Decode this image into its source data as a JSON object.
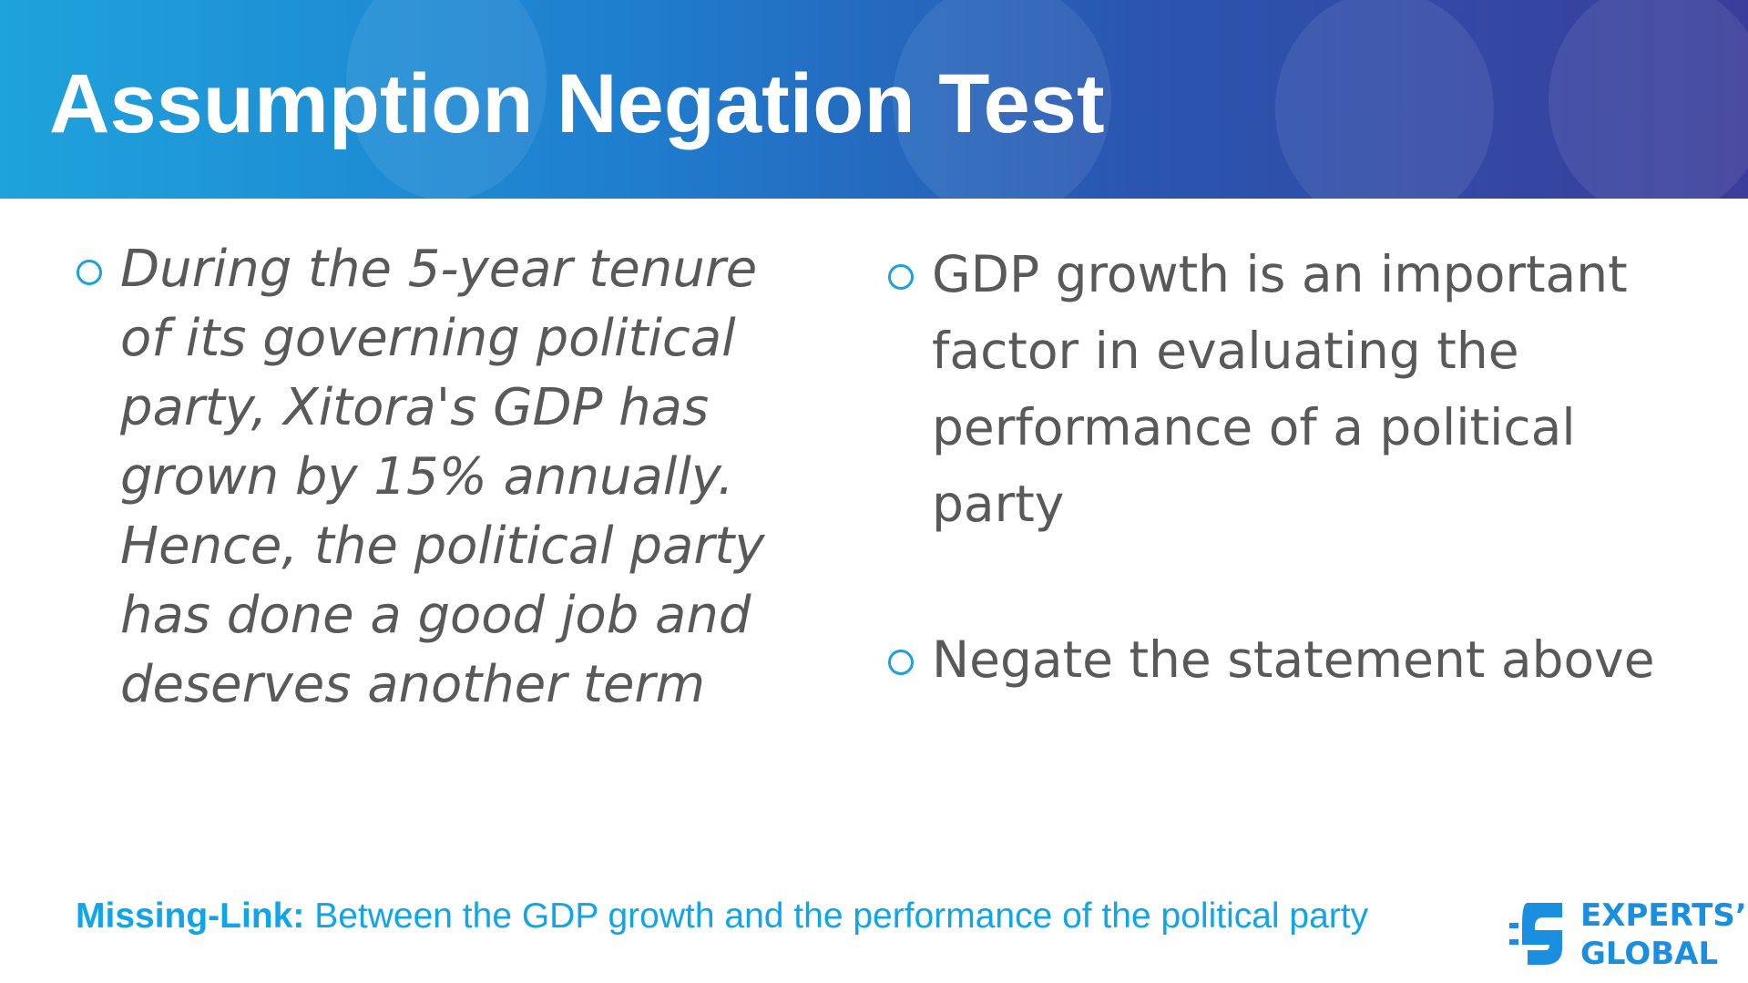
{
  "header": {
    "title": "Assumption Negation Test"
  },
  "left_bullet": {
    "text": "During the 5-year tenure of its governing political party, Xitora's GDP has grown by 15% annually. Hence, the political party has done a good job and deserves another term"
  },
  "right_bullets": [
    {
      "text": "GDP growth is an important factor in evaluating the performance of a political party"
    },
    {
      "text": "Negate the statement above"
    }
  ],
  "footer": {
    "label": "Missing-Link:",
    "text": "Between the GDP growth and the performance of the political party"
  },
  "logo": {
    "line1": "EXPERTS’",
    "line2": "GLOBAL"
  }
}
